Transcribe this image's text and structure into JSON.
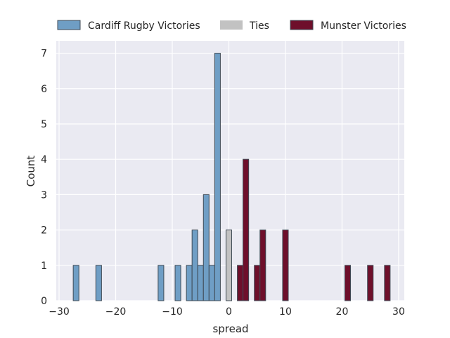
{
  "chart_data": {
    "type": "bar",
    "xlabel": "spread",
    "ylabel": "Count",
    "xlim": [
      -30.5,
      31
    ],
    "ylim": [
      0,
      7.35
    ],
    "xticks": [
      -30,
      -20,
      -10,
      0,
      10,
      20,
      30
    ],
    "yticks": [
      0,
      1,
      2,
      3,
      4,
      5,
      6,
      7
    ],
    "grid": true,
    "legend_position": "top",
    "bin_width": 1,
    "series": [
      {
        "name": "Cardiff Rugby Victories",
        "color": "#6f9ec5",
        "bars": [
          {
            "x": -27,
            "count": 1
          },
          {
            "x": -23,
            "count": 1
          },
          {
            "x": -12,
            "count": 1
          },
          {
            "x": -9,
            "count": 1
          },
          {
            "x": -7,
            "count": 1
          },
          {
            "x": -6,
            "count": 2
          },
          {
            "x": -5,
            "count": 1
          },
          {
            "x": -4,
            "count": 3
          },
          {
            "x": -3,
            "count": 1
          },
          {
            "x": -2,
            "count": 7
          }
        ]
      },
      {
        "name": "Ties",
        "color": "#c2c2c2",
        "bars": [
          {
            "x": 0,
            "count": 2
          }
        ]
      },
      {
        "name": "Munster Victories",
        "color": "#6e0f2b",
        "bars": [
          {
            "x": 2,
            "count": 1
          },
          {
            "x": 3,
            "count": 4
          },
          {
            "x": 5,
            "count": 1
          },
          {
            "x": 6,
            "count": 2
          },
          {
            "x": 10,
            "count": 2
          },
          {
            "x": 21,
            "count": 1
          },
          {
            "x": 25,
            "count": 1
          },
          {
            "x": 28,
            "count": 1
          }
        ]
      }
    ]
  }
}
